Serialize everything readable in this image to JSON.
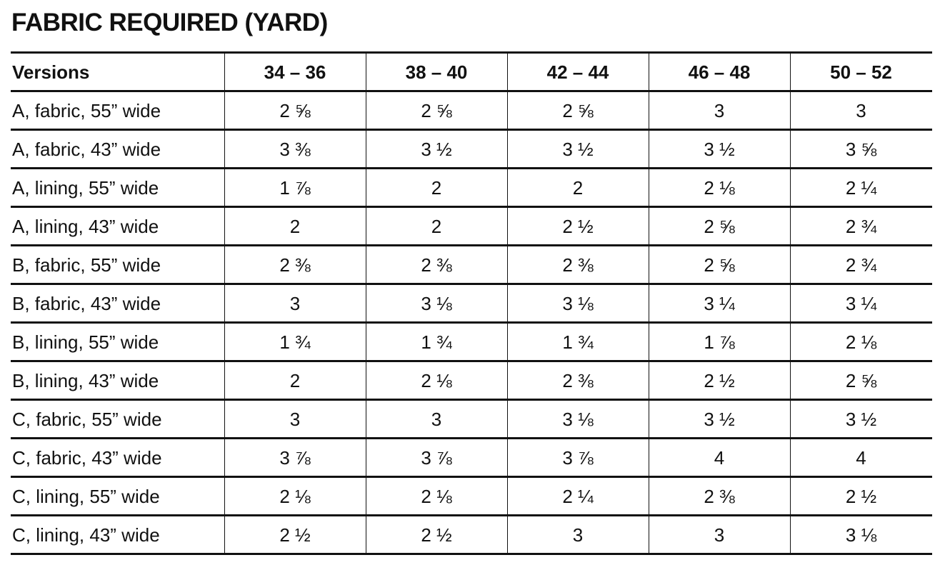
{
  "title": "FABRIC REQUIRED (YARD)",
  "table": {
    "header": [
      "Versions",
      "34 – 36",
      "38 – 40",
      "42 – 44",
      "46 – 48",
      "50 – 52"
    ],
    "rows": [
      [
        "A, fabric, 55” wide",
        "2 ⅝",
        "2 ⅝",
        "2 ⅝",
        "3",
        "3"
      ],
      [
        "A, fabric, 43” wide",
        "3 ⅜",
        "3 ½",
        "3 ½",
        "3 ½",
        "3 ⅝"
      ],
      [
        "A, lining, 55” wide",
        "1 ⅞",
        "2",
        "2",
        "2 ⅛",
        "2 ¼"
      ],
      [
        "A, lining, 43” wide",
        "2",
        "2",
        "2 ½",
        "2 ⅝",
        "2 ¾"
      ],
      [
        "B, fabric, 55” wide",
        "2 ⅜",
        "2 ⅜",
        "2 ⅜",
        "2 ⅝",
        "2 ¾"
      ],
      [
        "B, fabric, 43” wide",
        "3",
        "3 ⅛",
        "3 ⅛",
        "3 ¼",
        "3 ¼"
      ],
      [
        "B, lining, 55” wide",
        "1 ¾",
        "1 ¾",
        "1 ¾",
        "1 ⅞",
        "2 ⅛"
      ],
      [
        "B, lining, 43” wide",
        "2",
        "2 ⅛",
        "2 ⅜",
        "2 ½",
        "2 ⅝"
      ],
      [
        "C, fabric, 55” wide",
        "3",
        "3",
        "3 ⅛",
        "3 ½",
        "3 ½"
      ],
      [
        "C, fabric, 43” wide",
        "3 ⅞",
        "3 ⅞",
        "3 ⅞",
        "4",
        "4"
      ],
      [
        "C, lining, 55” wide",
        "2 ⅛",
        "2 ⅛",
        "2 ¼",
        "2 ⅜",
        "2 ½"
      ],
      [
        "C, lining, 43” wide",
        "2 ½",
        "2 ½",
        "3",
        "3",
        "3 ⅛"
      ]
    ]
  }
}
